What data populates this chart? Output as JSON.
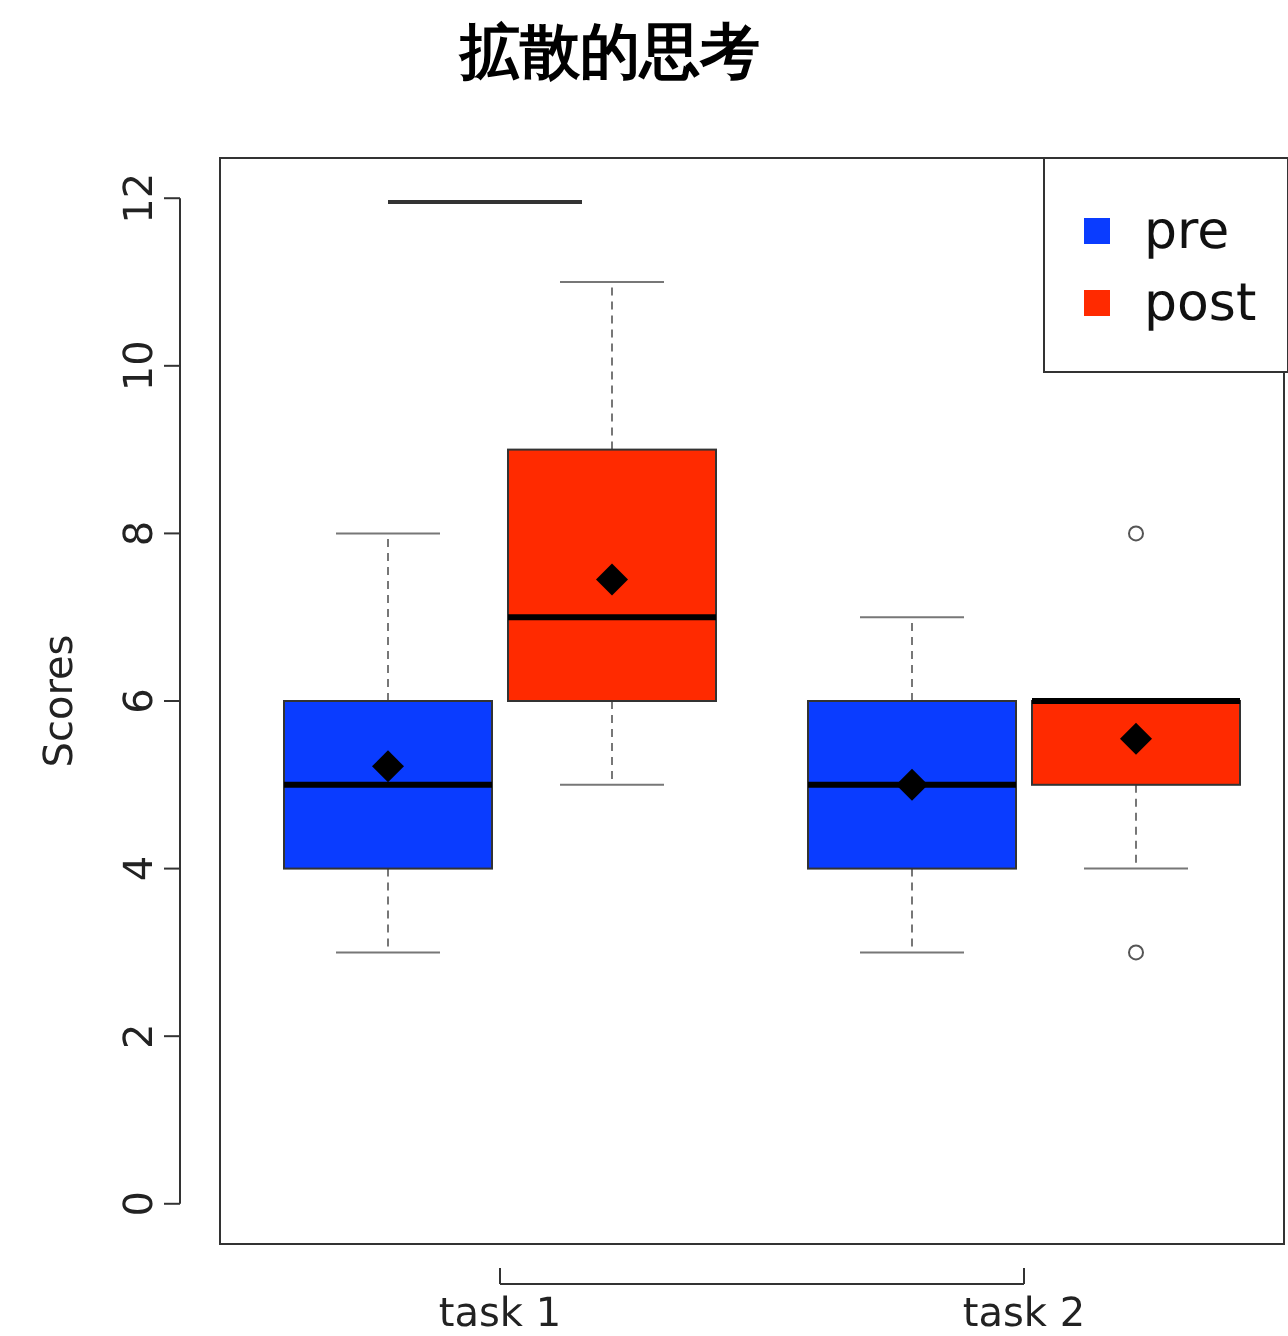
{
  "chart_data": {
    "type": "box",
    "title": "拡散的思考",
    "ylabel": "Scores",
    "categories": [
      "task 1",
      "task 2"
    ],
    "ylim": [
      -0.48,
      12.48
    ],
    "yticks": [
      0,
      2,
      4,
      6,
      8,
      10,
      12
    ],
    "legend": "top right",
    "grid": false,
    "series": [
      {
        "name": "pre",
        "color": "#0a3cff",
        "boxes": [
          {
            "low": 3,
            "q1": 4,
            "median": 5,
            "q3": 6,
            "high": 8,
            "mean": 5.22
          },
          {
            "low": 3,
            "q1": 4,
            "median": 5,
            "q3": 6,
            "high": 7,
            "mean": 5.0
          }
        ]
      },
      {
        "name": "post",
        "color": "#ff2a00",
        "boxes": [
          {
            "low": 5,
            "q1": 6,
            "median": 7,
            "q3": 9,
            "high": 11,
            "mean": 7.45
          },
          {
            "low": 4,
            "q1": 5,
            "median": 6,
            "q3": 6,
            "high": 6,
            "mean": 5.55,
            "outliers": [
              3,
              8
            ]
          }
        ]
      }
    ]
  }
}
